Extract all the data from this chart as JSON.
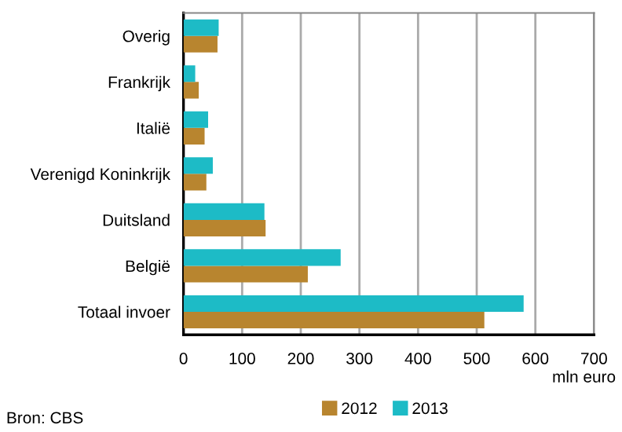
{
  "chart_data": {
    "type": "bar",
    "orientation": "horizontal",
    "categories": [
      "Overig",
      "Frankrijk",
      "Italië",
      "Verenigd Koninkrijk",
      "Duitsland",
      "België",
      "Totaal invoer"
    ],
    "series": [
      {
        "name": "2012",
        "color": "#b8852f",
        "values": [
          58,
          26,
          36,
          39,
          140,
          212,
          513
        ]
      },
      {
        "name": "2013",
        "color": "#1dbbc6",
        "values": [
          60,
          20,
          42,
          50,
          138,
          268,
          580
        ]
      }
    ],
    "xlim": [
      0,
      700
    ],
    "xticks": [
      0,
      100,
      200,
      300,
      400,
      500,
      600,
      700
    ],
    "xlabel": "mln euro",
    "grid": "x",
    "legend": "bottom",
    "annotations": [
      "Bron: CBS"
    ]
  }
}
